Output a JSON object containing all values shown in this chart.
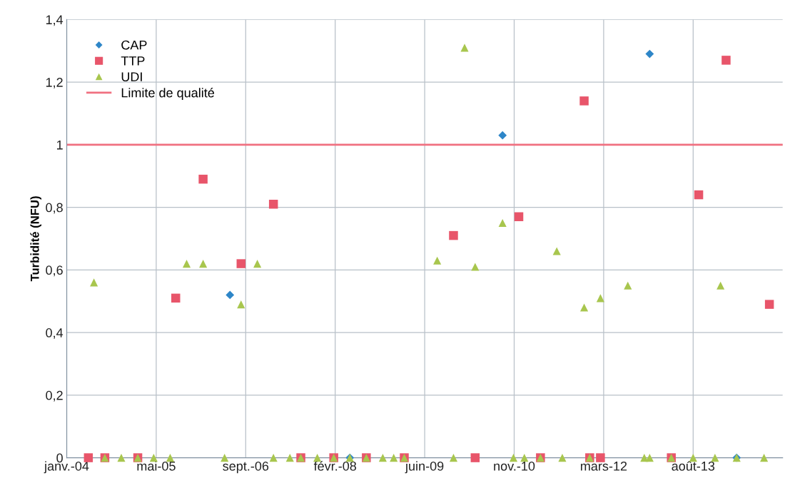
{
  "chart_data": {
    "type": "scatter",
    "ylabel": "Turbidité (NFU)",
    "xlim": [
      "2004-01-01",
      "2014-12-14"
    ],
    "xticks": [
      {
        "value": "2004-01-01",
        "label": "janv.-04"
      },
      {
        "value": "2005-05-15",
        "label": "mai-05"
      },
      {
        "value": "2006-09-27",
        "label": "sept.-06"
      },
      {
        "value": "2008-02-09",
        "label": "févr.-08"
      },
      {
        "value": "2009-06-23",
        "label": "juin-09"
      },
      {
        "value": "2010-11-05",
        "label": "nov.-10"
      },
      {
        "value": "2012-03-19",
        "label": "mars-12"
      },
      {
        "value": "2013-08-01",
        "label": "août-13"
      }
    ],
    "ylim": [
      0,
      1.4
    ],
    "yticks": [
      0,
      {
        "value": 0.2,
        "label": "0,2"
      },
      {
        "value": 0.4,
        "label": "0,4"
      },
      {
        "value": 0.6,
        "label": "0,6"
      },
      {
        "value": 0.8,
        "label": "0,8"
      },
      1,
      {
        "value": 1.2,
        "label": "1,2"
      },
      {
        "value": 1.4,
        "label": "1,4"
      }
    ],
    "grid": true,
    "legend": "top left",
    "series": [
      {
        "name": "CAP",
        "color": "#2e86c8",
        "marker": "diamond",
        "x": [
          "2006-07",
          "2008-05",
          "2010-09",
          "2012-12",
          "2014-04"
        ],
        "values": [
          0.52,
          0,
          1.03,
          1.29,
          0
        ]
      },
      {
        "name": "TTP",
        "color": "#e8556a",
        "marker": "square",
        "x": [
          "2004-05",
          "2004-08",
          "2005-02",
          "2005-09",
          "2006-02",
          "2006-09",
          "2007-03",
          "2007-08",
          "2008-02",
          "2008-08",
          "2009-03",
          "2009-12",
          "2010-04",
          "2010-12",
          "2011-04",
          "2011-12",
          "2012-01",
          "2012-03",
          "2013-04",
          "2013-09",
          "2014-02",
          "2014-10"
        ],
        "values": [
          0,
          0,
          0,
          0.51,
          0.89,
          0.62,
          0.81,
          0,
          0,
          0,
          0,
          0.71,
          0,
          0.77,
          0,
          1.14,
          0,
          0,
          0,
          0.84,
          1.27,
          0.49
        ]
      },
      {
        "name": "UDI",
        "color": "#a8c64e",
        "marker": "triangle",
        "x": [
          "2004-06",
          "2004-08",
          "2004-11",
          "2005-02",
          "2005-05",
          "2005-08",
          "2005-11",
          "2006-02",
          "2006-06",
          "2006-09",
          "2006-12",
          "2007-03",
          "2007-06",
          "2007-08",
          "2007-11",
          "2008-02",
          "2008-05",
          "2008-08",
          "2008-11",
          "2009-01",
          "2009-03",
          "2009-09",
          "2009-12",
          "2010-02",
          "2010-04",
          "2010-09",
          "2010-11",
          "2011-01",
          "2011-04",
          "2011-07",
          "2011-08",
          "2011-12",
          "2012-01",
          "2012-03",
          "2012-08",
          "2012-11",
          "2012-12",
          "2013-04",
          "2013-08",
          "2013-12",
          "2014-01",
          "2014-04",
          "2014-09"
        ],
        "values": [
          0.56,
          0,
          0,
          0,
          0,
          0,
          0.62,
          0.62,
          0,
          0.49,
          0.62,
          0,
          0,
          0,
          0,
          0,
          0,
          0,
          0,
          0,
          0,
          0.63,
          0,
          1.31,
          0.61,
          0.75,
          0,
          0,
          0,
          0.66,
          0,
          0.48,
          0,
          0.51,
          0.55,
          0,
          0,
          0,
          0,
          0,
          0.55,
          0,
          0
        ]
      }
    ],
    "ref_lines": [
      {
        "axis": "y",
        "value": 1,
        "label": "Limite de qualité",
        "color": "#f07080"
      }
    ]
  }
}
